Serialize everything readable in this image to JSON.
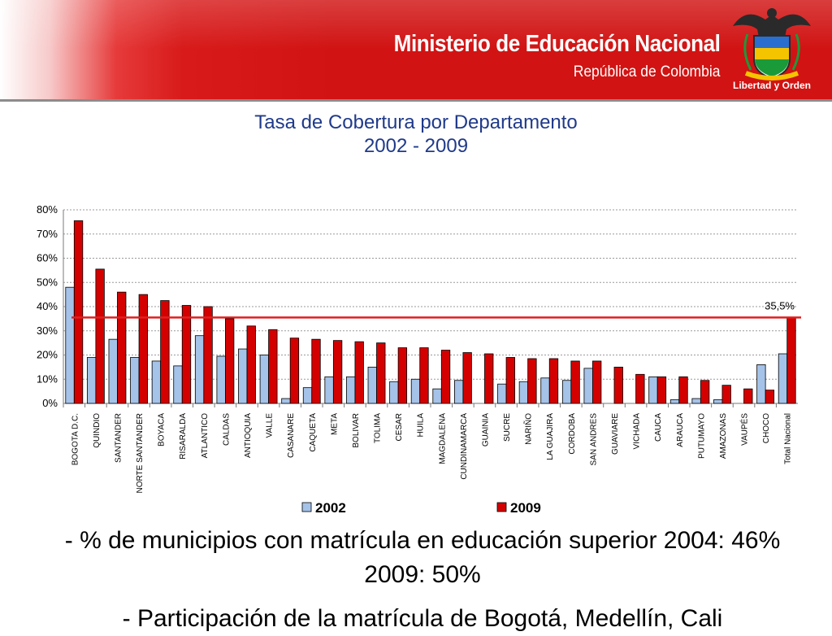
{
  "header": {
    "ministry": "Ministerio de Educación Nacional",
    "republic": "República de Colombia",
    "motto": "Libertad y Orden",
    "logo_icon": "coat-of-arms-icon",
    "colors": {
      "header_red": "#d11313",
      "title_blue": "#1f3a8a"
    }
  },
  "chart_data": {
    "type": "bar",
    "title": "Tasa de Cobertura por Departamento",
    "subtitle": "2002 - 2009",
    "categories": [
      "BOGOTA D.C.",
      "QUINDIO",
      "SANTANDER",
      "NORTE SANTANDER",
      "BOYACA",
      "RISARALDA",
      "ATLANTICO",
      "CALDAS",
      "ANTIOQUIA",
      "VALLE",
      "CASANARE",
      "CAQUETA",
      "META",
      "BOLIVAR",
      "TOLIMA",
      "CESAR",
      "HUILA",
      "MAGDALENA",
      "CUNDINAMARCA",
      "GUAINIA",
      "SUCRE",
      "NARIÑO",
      "LA GUAJIRA",
      "CORDOBA",
      "SAN ANDRES",
      "GUAVIARE",
      "VICHADA",
      "CAUCA",
      "ARAUCA",
      "PUTUMAYO",
      "AMAZONAS",
      "VAUPÉS",
      "CHOCO",
      "Total Nacional"
    ],
    "series": [
      {
        "name": "2002",
        "color": "#a5c3e8",
        "values": [
          48,
          19,
          26.5,
          19,
          17.5,
          15.5,
          28,
          19.5,
          22.5,
          20,
          2,
          6.5,
          11,
          11,
          15,
          9,
          10,
          6,
          9.5,
          0,
          8,
          9,
          10.5,
          9.5,
          14.5,
          0,
          0,
          11,
          1.5,
          2,
          1.5,
          0,
          16,
          20.5
        ]
      },
      {
        "name": "2009",
        "color": "#d40000",
        "values": [
          75.5,
          55.5,
          46,
          45,
          42.5,
          40.5,
          40,
          35,
          32,
          30.5,
          27,
          26.5,
          26,
          25.5,
          25,
          23,
          23,
          22,
          21,
          20.5,
          19,
          18.5,
          18.5,
          17.5,
          17.5,
          15,
          12,
          11,
          11,
          9.5,
          7.5,
          6,
          5.5,
          35.5
        ]
      }
    ],
    "reference_line": {
      "value": 35.5,
      "label": "35,5%",
      "color": "#e02020"
    },
    "ylim": [
      0,
      80
    ],
    "yticks": [
      "0%",
      "10%",
      "20%",
      "30%",
      "40%",
      "50%",
      "60%",
      "70%",
      "80%"
    ],
    "grid": true,
    "legend_position": "bottom"
  },
  "bullets": [
    "- % de municipios con matrícula en educación superior  2004: 46%   2009: 50%",
    "-  Participación de la matrícula de Bogotá, Medellín, Cali"
  ]
}
